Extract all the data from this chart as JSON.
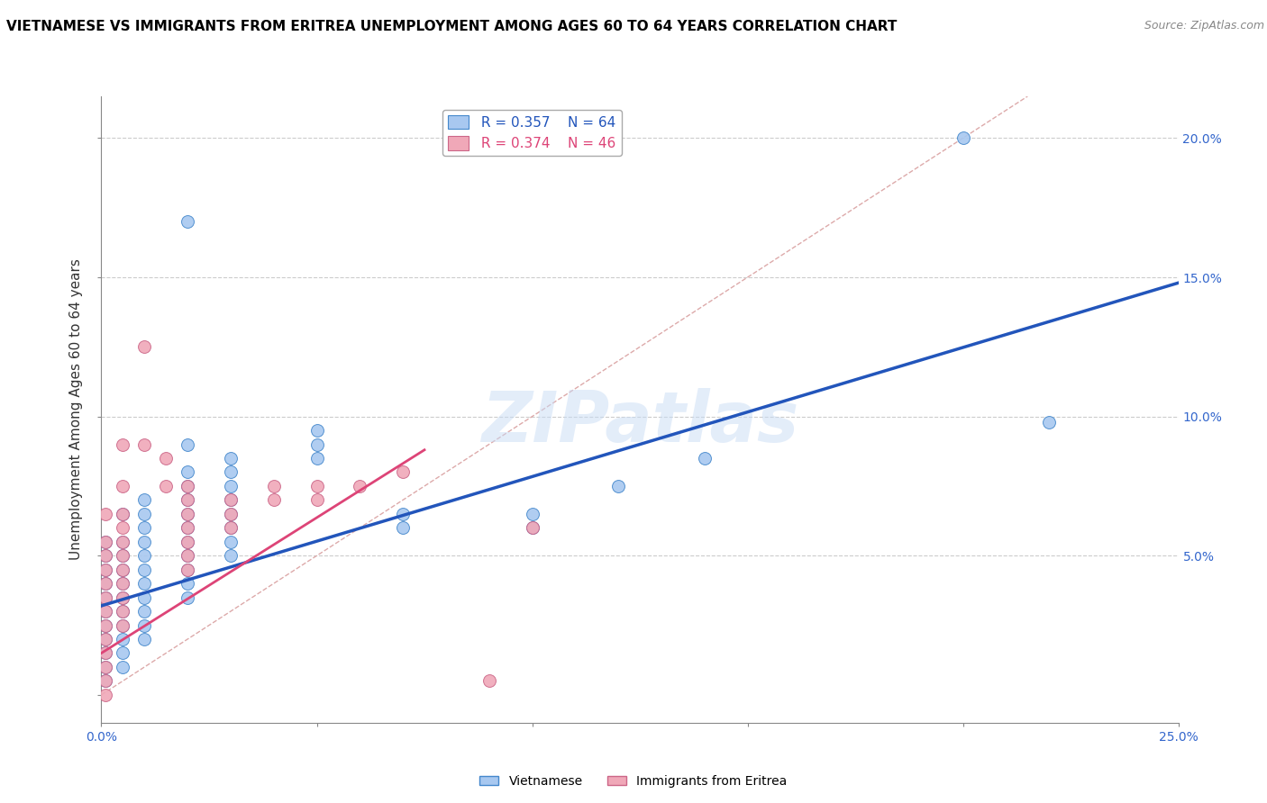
{
  "title": "VIETNAMESE VS IMMIGRANTS FROM ERITREA UNEMPLOYMENT AMONG AGES 60 TO 64 YEARS CORRELATION CHART",
  "source": "Source: ZipAtlas.com",
  "ylabel": "Unemployment Among Ages 60 to 64 years",
  "xlim": [
    0.0,
    0.25
  ],
  "ylim": [
    -0.01,
    0.215
  ],
  "watermark": "ZIPatlas",
  "legend_blue_r": "R = 0.357",
  "legend_blue_n": "N = 64",
  "legend_pink_r": "R = 0.374",
  "legend_pink_n": "N = 46",
  "blue_color": "#A8C8F0",
  "pink_color": "#F0A8B8",
  "blue_edge_color": "#4488CC",
  "pink_edge_color": "#CC6688",
  "blue_line_color": "#2255BB",
  "pink_line_color": "#DD4477",
  "diag_line_color": "#DDAAAA",
  "grid_color": "#CCCCCC",
  "background_color": "#FFFFFF",
  "title_fontsize": 11,
  "axis_label_fontsize": 11,
  "tick_fontsize": 10,
  "legend_fontsize": 11,
  "blue_scatter": [
    [
      0.001,
      0.055
    ],
    [
      0.001,
      0.05
    ],
    [
      0.001,
      0.045
    ],
    [
      0.001,
      0.04
    ],
    [
      0.001,
      0.035
    ],
    [
      0.001,
      0.03
    ],
    [
      0.001,
      0.025
    ],
    [
      0.001,
      0.02
    ],
    [
      0.001,
      0.015
    ],
    [
      0.001,
      0.01
    ],
    [
      0.001,
      0.005
    ],
    [
      0.005,
      0.065
    ],
    [
      0.005,
      0.055
    ],
    [
      0.005,
      0.05
    ],
    [
      0.005,
      0.045
    ],
    [
      0.005,
      0.04
    ],
    [
      0.005,
      0.035
    ],
    [
      0.005,
      0.03
    ],
    [
      0.005,
      0.025
    ],
    [
      0.005,
      0.02
    ],
    [
      0.005,
      0.015
    ],
    [
      0.005,
      0.01
    ],
    [
      0.01,
      0.07
    ],
    [
      0.01,
      0.065
    ],
    [
      0.01,
      0.06
    ],
    [
      0.01,
      0.055
    ],
    [
      0.01,
      0.05
    ],
    [
      0.01,
      0.045
    ],
    [
      0.01,
      0.04
    ],
    [
      0.01,
      0.035
    ],
    [
      0.01,
      0.03
    ],
    [
      0.01,
      0.025
    ],
    [
      0.01,
      0.02
    ],
    [
      0.02,
      0.17
    ],
    [
      0.02,
      0.09
    ],
    [
      0.02,
      0.08
    ],
    [
      0.02,
      0.075
    ],
    [
      0.02,
      0.07
    ],
    [
      0.02,
      0.065
    ],
    [
      0.02,
      0.06
    ],
    [
      0.02,
      0.055
    ],
    [
      0.02,
      0.05
    ],
    [
      0.02,
      0.045
    ],
    [
      0.02,
      0.04
    ],
    [
      0.02,
      0.035
    ],
    [
      0.03,
      0.085
    ],
    [
      0.03,
      0.08
    ],
    [
      0.03,
      0.075
    ],
    [
      0.03,
      0.07
    ],
    [
      0.03,
      0.065
    ],
    [
      0.03,
      0.06
    ],
    [
      0.03,
      0.055
    ],
    [
      0.03,
      0.05
    ],
    [
      0.05,
      0.095
    ],
    [
      0.05,
      0.09
    ],
    [
      0.05,
      0.085
    ],
    [
      0.07,
      0.065
    ],
    [
      0.07,
      0.06
    ],
    [
      0.1,
      0.065
    ],
    [
      0.1,
      0.06
    ],
    [
      0.12,
      0.075
    ],
    [
      0.14,
      0.085
    ],
    [
      0.2,
      0.2
    ],
    [
      0.22,
      0.098
    ]
  ],
  "pink_scatter": [
    [
      0.001,
      0.065
    ],
    [
      0.001,
      0.055
    ],
    [
      0.001,
      0.05
    ],
    [
      0.001,
      0.045
    ],
    [
      0.001,
      0.04
    ],
    [
      0.001,
      0.035
    ],
    [
      0.001,
      0.03
    ],
    [
      0.001,
      0.025
    ],
    [
      0.001,
      0.02
    ],
    [
      0.001,
      0.015
    ],
    [
      0.001,
      0.01
    ],
    [
      0.001,
      0.005
    ],
    [
      0.001,
      0.0
    ],
    [
      0.005,
      0.09
    ],
    [
      0.005,
      0.075
    ],
    [
      0.005,
      0.065
    ],
    [
      0.005,
      0.06
    ],
    [
      0.005,
      0.055
    ],
    [
      0.005,
      0.05
    ],
    [
      0.005,
      0.045
    ],
    [
      0.005,
      0.04
    ],
    [
      0.005,
      0.035
    ],
    [
      0.005,
      0.03
    ],
    [
      0.005,
      0.025
    ],
    [
      0.01,
      0.125
    ],
    [
      0.01,
      0.09
    ],
    [
      0.015,
      0.085
    ],
    [
      0.015,
      0.075
    ],
    [
      0.02,
      0.075
    ],
    [
      0.02,
      0.07
    ],
    [
      0.02,
      0.065
    ],
    [
      0.02,
      0.06
    ],
    [
      0.02,
      0.055
    ],
    [
      0.02,
      0.05
    ],
    [
      0.02,
      0.045
    ],
    [
      0.03,
      0.07
    ],
    [
      0.03,
      0.065
    ],
    [
      0.03,
      0.06
    ],
    [
      0.04,
      0.075
    ],
    [
      0.04,
      0.07
    ],
    [
      0.05,
      0.075
    ],
    [
      0.05,
      0.07
    ],
    [
      0.06,
      0.075
    ],
    [
      0.07,
      0.08
    ],
    [
      0.09,
      0.005
    ],
    [
      0.1,
      0.06
    ]
  ],
  "blue_line": [
    [
      0.0,
      0.032
    ],
    [
      0.25,
      0.148
    ]
  ],
  "pink_line": [
    [
      0.0,
      0.015
    ],
    [
      0.075,
      0.088
    ]
  ],
  "diag_line": [
    [
      0.0,
      0.0
    ],
    [
      0.215,
      0.215
    ]
  ]
}
